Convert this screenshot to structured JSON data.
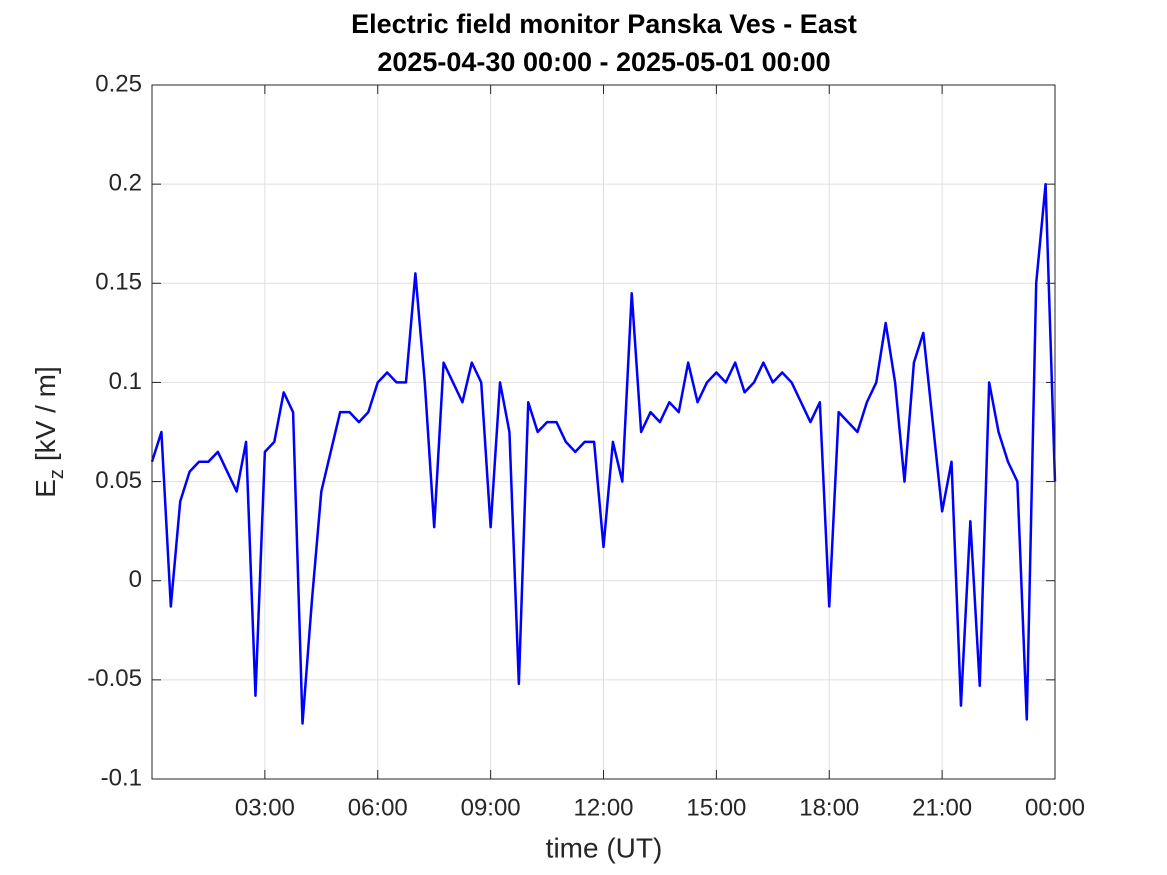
{
  "chart_data": {
    "type": "line",
    "title": "Electric field monitor Panska Ves - East",
    "subtitle": "2025-04-30 00:00 - 2025-05-01 00:00",
    "xlabel": "time (UT)",
    "ylabel": {
      "symbol": "E",
      "subscript": "z",
      "unit": "[kV / m]"
    },
    "color": "#0000ff",
    "grid": true,
    "xlim": [
      0,
      24
    ],
    "xticks": [
      {
        "value": 3,
        "label": "03:00"
      },
      {
        "value": 6,
        "label": "06:00"
      },
      {
        "value": 9,
        "label": "09:00"
      },
      {
        "value": 12,
        "label": "12:00"
      },
      {
        "value": 15,
        "label": "15:00"
      },
      {
        "value": 18,
        "label": "18:00"
      },
      {
        "value": 21,
        "label": "21:00"
      },
      {
        "value": 24,
        "label": "00:00"
      }
    ],
    "ylim": [
      -0.1,
      0.25
    ],
    "yticks": [
      -0.1,
      -0.05,
      0,
      0.05,
      0.1,
      0.15,
      0.2,
      0.25
    ],
    "x": [
      0,
      0.25,
      0.5,
      0.75,
      1,
      1.25,
      1.5,
      1.75,
      2,
      2.25,
      2.5,
      2.75,
      3,
      3.25,
      3.5,
      3.75,
      4,
      4.25,
      4.5,
      4.75,
      5,
      5.25,
      5.5,
      5.75,
      6,
      6.25,
      6.5,
      6.75,
      7,
      7.25,
      7.5,
      7.75,
      8,
      8.25,
      8.5,
      8.75,
      9,
      9.25,
      9.5,
      9.75,
      10,
      10.25,
      10.5,
      10.75,
      11,
      11.25,
      11.5,
      11.75,
      12,
      12.25,
      12.5,
      12.75,
      13,
      13.25,
      13.5,
      13.75,
      14,
      14.25,
      14.5,
      14.75,
      15,
      15.25,
      15.5,
      15.75,
      16,
      16.25,
      16.5,
      16.75,
      17,
      17.25,
      17.5,
      17.75,
      18,
      18.25,
      18.5,
      18.75,
      19,
      19.25,
      19.5,
      19.75,
      20,
      20.25,
      20.5,
      20.75,
      21,
      21.25,
      21.5,
      21.75,
      22,
      22.25,
      22.5,
      22.75,
      23,
      23.25,
      23.5,
      23.75,
      24
    ],
    "values": [
      0.06,
      0.075,
      -0.013,
      0.04,
      0.055,
      0.06,
      0.06,
      0.065,
      0.055,
      0.045,
      0.07,
      -0.058,
      0.065,
      0.07,
      0.095,
      0.085,
      -0.072,
      -0.01,
      0.045,
      0.065,
      0.085,
      0.085,
      0.08,
      0.085,
      0.1,
      0.105,
      0.1,
      0.1,
      0.155,
      0.1,
      0.027,
      0.11,
      0.1,
      0.09,
      0.11,
      0.1,
      0.027,
      0.1,
      0.075,
      -0.052,
      0.09,
      0.075,
      0.08,
      0.08,
      0.07,
      0.065,
      0.07,
      0.07,
      0.017,
      0.07,
      0.05,
      0.145,
      0.075,
      0.085,
      0.08,
      0.09,
      0.085,
      0.11,
      0.09,
      0.1,
      0.105,
      0.1,
      0.11,
      0.095,
      0.1,
      0.11,
      0.1,
      0.105,
      0.1,
      0.09,
      0.08,
      0.09,
      -0.013,
      0.085,
      0.08,
      0.075,
      0.09,
      0.1,
      0.13,
      0.1,
      0.05,
      0.11,
      0.125,
      0.08,
      0.035,
      0.06,
      -0.063,
      0.03,
      -0.053,
      0.1,
      0.075,
      0.06,
      0.05,
      -0.07,
      0.15,
      0.2,
      0.05
    ]
  }
}
